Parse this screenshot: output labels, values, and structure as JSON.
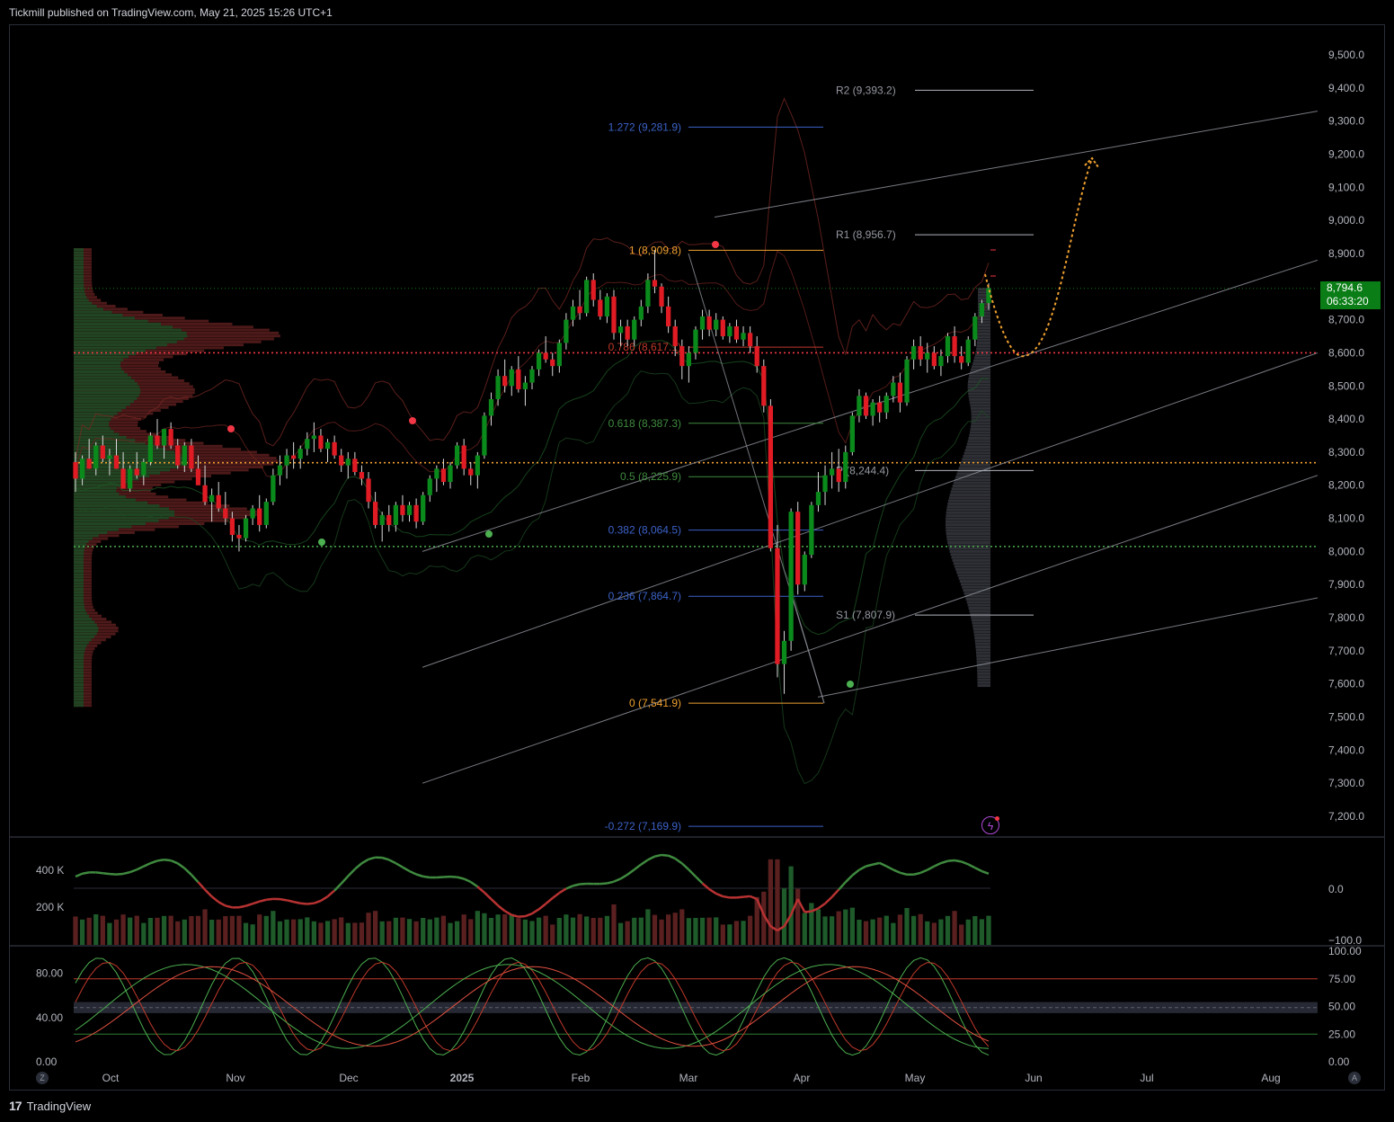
{
  "header": {
    "publisher": "Tickmill published on TradingView.com, May 21, 2025 15:26 UTC+1"
  },
  "footer": {
    "brand": "TradingView",
    "logo": "17"
  },
  "colors": {
    "bull": "#0b8a1c",
    "bear": "#e01b24",
    "fib_orange": "#f0a030",
    "fib_blue": "#3c62c8",
    "fib_green": "#3f8a3f",
    "fib_red": "#c0392b",
    "pivot": "#9598a1"
  },
  "chart_data": [
    {
      "type": "candlestick",
      "price_axis": {
        "ticks": [
          "9,500.0",
          "9,400.0",
          "9,300.0",
          "9,200.0",
          "9,100.0",
          "9,000.0",
          "8,900.0",
          "8,800.0",
          "8,700.0",
          "8,600.0",
          "8,500.0",
          "8,400.0",
          "8,300.0",
          "8,200.0",
          "8,100.0",
          "8,000.0",
          "7,900.0",
          "7,800.0",
          "7,700.0",
          "7,600.0",
          "7,500.0",
          "7,400.0",
          "7,300.0",
          "7,200.0"
        ],
        "range": [
          7140,
          9560
        ]
      },
      "time_axis": {
        "labels": [
          "Oct",
          "Nov",
          "Dec",
          "2025",
          "Feb",
          "Mar",
          "Apr",
          "May",
          "Jun",
          "Jul",
          "Aug"
        ]
      },
      "last_price": {
        "value": "8,794.6",
        "countdown": "06:33:20"
      },
      "fibonacci": [
        {
          "label": "1.272 (9,281.9)",
          "value": 9281.9,
          "color": "fib_blue"
        },
        {
          "label": "1 (8,909.8)",
          "value": 8909.8,
          "color": "fib_orange"
        },
        {
          "label": "0.786 (8,617.1)",
          "value": 8617.1,
          "color": "fib_red"
        },
        {
          "label": "0.618 (8,387.3)",
          "value": 8387.3,
          "color": "fib_green"
        },
        {
          "label": "0.5 (8,225.9)",
          "value": 8225.9,
          "color": "fib_green"
        },
        {
          "label": "0.382 (8,064.5)",
          "value": 8064.5,
          "color": "fib_blue"
        },
        {
          "label": "0.236 (7,864.7)",
          "value": 7864.7,
          "color": "fib_blue"
        },
        {
          "label": "0 (7,541.9)",
          "value": 7541.9,
          "color": "fib_orange"
        },
        {
          "label": "-0.272 (7,169.9)",
          "value": 7169.9,
          "color": "fib_blue"
        }
      ],
      "pivots": [
        {
          "label": "R2 (9,393.2)",
          "value": 9393.2
        },
        {
          "label": "R1 (8,956.7)",
          "value": 8956.7
        },
        {
          "label": "P (8,244.4)",
          "value": 8244.4
        },
        {
          "label": "S1 (7,807.9)",
          "value": 7807.9
        }
      ],
      "horizontal_levels": [
        {
          "value": 8600,
          "style": "dotted",
          "color": "#f23645"
        },
        {
          "value": 8268,
          "style": "dotted",
          "color": "#f0a030"
        },
        {
          "value": 8015,
          "style": "dotted",
          "color": "#4caf50"
        }
      ],
      "candles": [
        [
          8270,
          8300,
          8180,
          8220
        ],
        [
          8220,
          8290,
          8200,
          8280
        ],
        [
          8280,
          8340,
          8250,
          8250
        ],
        [
          8250,
          8330,
          8230,
          8320
        ],
        [
          8320,
          8350,
          8270,
          8280
        ],
        [
          8280,
          8310,
          8230,
          8290
        ],
        [
          8290,
          8340,
          8250,
          8250
        ],
        [
          8250,
          8300,
          8190,
          8190
        ],
        [
          8190,
          8260,
          8180,
          8250
        ],
        [
          8250,
          8300,
          8220,
          8230
        ],
        [
          8230,
          8280,
          8200,
          8270
        ],
        [
          8270,
          8360,
          8260,
          8350
        ],
        [
          8350,
          8400,
          8310,
          8320
        ],
        [
          8320,
          8370,
          8280,
          8370
        ],
        [
          8370,
          8390,
          8310,
          8320
        ],
        [
          8320,
          8340,
          8250,
          8260
        ],
        [
          8260,
          8330,
          8240,
          8320
        ],
        [
          8320,
          8340,
          8240,
          8250
        ],
        [
          8250,
          8290,
          8200,
          8200
        ],
        [
          8200,
          8260,
          8140,
          8150
        ],
        [
          8150,
          8190,
          8090,
          8170
        ],
        [
          8170,
          8210,
          8120,
          8130
        ],
        [
          8130,
          8180,
          8080,
          8100
        ],
        [
          8100,
          8120,
          8030,
          8050
        ],
        [
          8050,
          8080,
          8000,
          8040
        ],
        [
          8040,
          8110,
          8030,
          8100
        ],
        [
          8100,
          8140,
          8080,
          8130
        ],
        [
          8130,
          8170,
          8060,
          8080
        ],
        [
          8080,
          8160,
          8070,
          8150
        ],
        [
          8150,
          8250,
          8140,
          8230
        ],
        [
          8230,
          8290,
          8200,
          8260
        ],
        [
          8260,
          8310,
          8220,
          8290
        ],
        [
          8290,
          8330,
          8250,
          8280
        ],
        [
          8280,
          8320,
          8250,
          8310
        ],
        [
          8310,
          8360,
          8290,
          8340
        ],
        [
          8340,
          8390,
          8300,
          8350
        ],
        [
          8350,
          8370,
          8300,
          8310
        ],
        [
          8310,
          8340,
          8270,
          8330
        ],
        [
          8330,
          8350,
          8280,
          8290
        ],
        [
          8290,
          8310,
          8240,
          8260
        ],
        [
          8260,
          8300,
          8220,
          8280
        ],
        [
          8280,
          8300,
          8230,
          8240
        ],
        [
          8240,
          8260,
          8200,
          8220
        ],
        [
          8220,
          8240,
          8130,
          8150
        ],
        [
          8150,
          8180,
          8070,
          8080
        ],
        [
          8080,
          8120,
          8030,
          8110
        ],
        [
          8110,
          8140,
          8060,
          8080
        ],
        [
          8080,
          8150,
          8060,
          8140
        ],
        [
          8140,
          8170,
          8090,
          8110
        ],
        [
          8110,
          8150,
          8090,
          8140
        ],
        [
          8140,
          8160,
          8070,
          8090
        ],
        [
          8090,
          8180,
          8080,
          8170
        ],
        [
          8170,
          8230,
          8150,
          8220
        ],
        [
          8220,
          8260,
          8180,
          8250
        ],
        [
          8250,
          8280,
          8200,
          8210
        ],
        [
          8210,
          8270,
          8190,
          8260
        ],
        [
          8260,
          8330,
          8250,
          8320
        ],
        [
          8320,
          8340,
          8230,
          8250
        ],
        [
          8250,
          8270,
          8200,
          8230
        ],
        [
          8230,
          8300,
          8190,
          8290
        ],
        [
          8290,
          8420,
          8280,
          8410
        ],
        [
          8410,
          8480,
          8380,
          8460
        ],
        [
          8460,
          8550,
          8440,
          8530
        ],
        [
          8530,
          8580,
          8480,
          8500
        ],
        [
          8500,
          8560,
          8470,
          8550
        ],
        [
          8550,
          8590,
          8480,
          8490
        ],
        [
          8490,
          8530,
          8440,
          8510
        ],
        [
          8510,
          8560,
          8490,
          8550
        ],
        [
          8550,
          8610,
          8530,
          8600
        ],
        [
          8600,
          8650,
          8570,
          8580
        ],
        [
          8580,
          8600,
          8530,
          8560
        ],
        [
          8560,
          8640,
          8540,
          8630
        ],
        [
          8630,
          8720,
          8610,
          8700
        ],
        [
          8700,
          8760,
          8680,
          8740
        ],
        [
          8740,
          8790,
          8700,
          8720
        ],
        [
          8720,
          8830,
          8710,
          8820
        ],
        [
          8820,
          8840,
          8740,
          8760
        ],
        [
          8760,
          8790,
          8700,
          8710
        ],
        [
          8710,
          8780,
          8690,
          8770
        ],
        [
          8770,
          8790,
          8640,
          8660
        ],
        [
          8660,
          8700,
          8620,
          8680
        ],
        [
          8680,
          8700,
          8620,
          8640
        ],
        [
          8640,
          8710,
          8620,
          8700
        ],
        [
          8700,
          8760,
          8680,
          8740
        ],
        [
          8740,
          8840,
          8720,
          8820
        ],
        [
          8820,
          8910,
          8780,
          8800
        ],
        [
          8800,
          8810,
          8720,
          8740
        ],
        [
          8740,
          8770,
          8660,
          8680
        ],
        [
          8680,
          8700,
          8590,
          8620
        ],
        [
          8620,
          8640,
          8520,
          8560
        ],
        [
          8560,
          8620,
          8510,
          8600
        ],
        [
          8600,
          8680,
          8580,
          8670
        ],
        [
          8670,
          8730,
          8640,
          8710
        ],
        [
          8710,
          8730,
          8650,
          8670
        ],
        [
          8670,
          8720,
          8650,
          8700
        ],
        [
          8700,
          8710,
          8640,
          8650
        ],
        [
          8650,
          8690,
          8630,
          8680
        ],
        [
          8680,
          8700,
          8630,
          8640
        ],
        [
          8640,
          8680,
          8620,
          8660
        ],
        [
          8660,
          8680,
          8600,
          8620
        ],
        [
          8620,
          8650,
          8540,
          8560
        ],
        [
          8560,
          8580,
          8420,
          8440
        ],
        [
          8440,
          8460,
          8000,
          8010
        ],
        [
          8010,
          8080,
          7620,
          7660
        ],
        [
          7660,
          7760,
          7570,
          7730
        ],
        [
          7730,
          8130,
          7700,
          8120
        ],
        [
          8120,
          8150,
          7870,
          7900
        ],
        [
          7900,
          8000,
          7880,
          7990
        ],
        [
          7990,
          8150,
          7980,
          8140
        ],
        [
          8140,
          8240,
          8120,
          8180
        ],
        [
          8180,
          8260,
          8140,
          8230
        ],
        [
          8230,
          8300,
          8190,
          8250
        ],
        [
          8250,
          8310,
          8180,
          8210
        ],
        [
          8210,
          8320,
          8190,
          8300
        ],
        [
          8300,
          8420,
          8290,
          8410
        ],
        [
          8410,
          8490,
          8390,
          8470
        ],
        [
          8470,
          8480,
          8400,
          8410
        ],
        [
          8410,
          8460,
          8380,
          8450
        ],
        [
          8450,
          8470,
          8390,
          8420
        ],
        [
          8420,
          8480,
          8400,
          8470
        ],
        [
          8470,
          8530,
          8450,
          8510
        ],
        [
          8510,
          8540,
          8420,
          8450
        ],
        [
          8450,
          8590,
          8440,
          8580
        ],
        [
          8580,
          8640,
          8550,
          8620
        ],
        [
          8620,
          8650,
          8560,
          8580
        ],
        [
          8580,
          8630,
          8540,
          8600
        ],
        [
          8600,
          8620,
          8550,
          8560
        ],
        [
          8560,
          8610,
          8530,
          8590
        ],
        [
          8590,
          8660,
          8570,
          8650
        ],
        [
          8650,
          8680,
          8570,
          8590
        ],
        [
          8590,
          8620,
          8550,
          8570
        ],
        [
          8570,
          8650,
          8560,
          8640
        ],
        [
          8640,
          8720,
          8620,
          8710
        ],
        [
          8710,
          8760,
          8690,
          8750
        ],
        [
          8750,
          8810,
          8730,
          8795
        ]
      ],
      "projection": "dotted orange path from 8,794.6 down to about 8,590 then up to about 9,190 (mid-June)",
      "volume_panel": {
        "ticks": [
          "400 K",
          "200 K"
        ],
        "right_ticks": [
          "0.0",
          "−100.0"
        ]
      },
      "oscillator_panel": {
        "left_ticks": [
          "80.00",
          "40.00",
          "0.00"
        ],
        "right_ticks": [
          "100.00",
          "75.00",
          "50.00",
          "25.00",
          "0.00"
        ],
        "upper_band": 75,
        "lower_band": 25
      }
    }
  ],
  "ui": {
    "z_button": "Z",
    "a_button": "A",
    "flash_icon": "lightning-icon"
  }
}
